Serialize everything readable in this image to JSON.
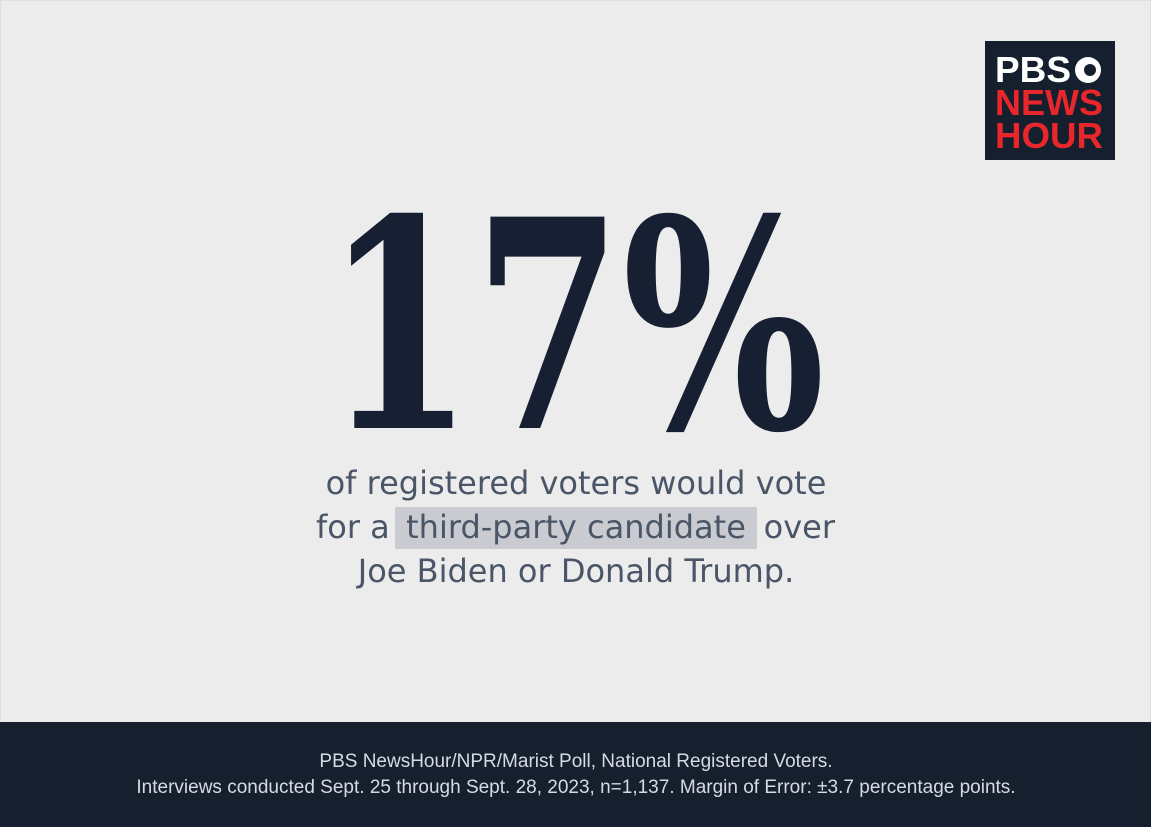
{
  "logo": {
    "line1": "PBS",
    "line2": "NEWS",
    "line3": "HOUR"
  },
  "stat": "17%",
  "description": {
    "line1": "of registered voters would vote",
    "line2_before": "for a",
    "line2_highlight": "third-party candidate",
    "line2_after": "over",
    "line3": "Joe Biden or Donald Trump."
  },
  "footer": {
    "line1": "PBS NewsHour/NPR/Marist Poll, National Registered Voters.",
    "line2": "Interviews conducted Sept. 25 through Sept. 28, 2023, n=1,137. Margin of Error: ±3.7 percentage points."
  }
}
